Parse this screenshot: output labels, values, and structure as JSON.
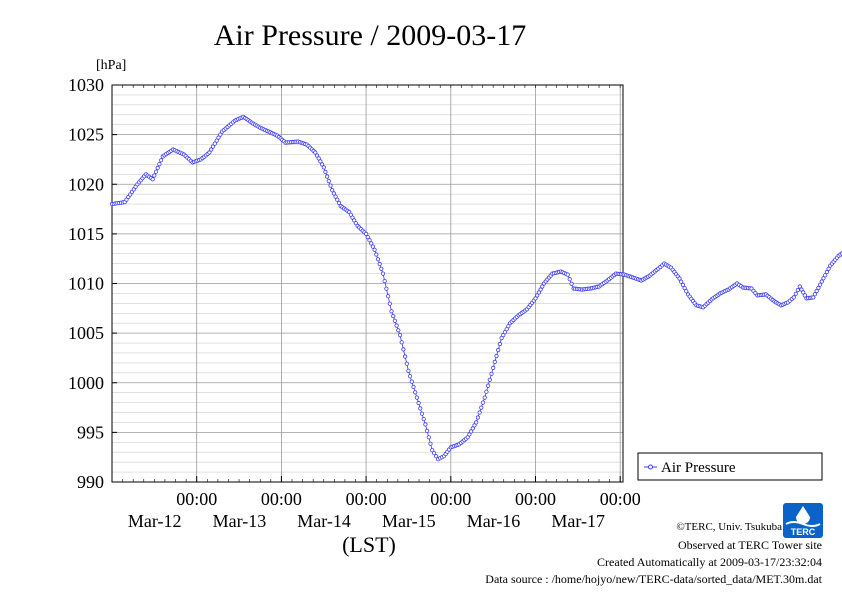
{
  "chart_data": {
    "type": "line",
    "title": "Air Pressure / 2009-03-17",
    "ylabel": "[hPa]",
    "xlabel": "(LST)",
    "ylim": [
      990,
      1030
    ],
    "y_ticks": [
      990,
      995,
      1000,
      1005,
      1010,
      1015,
      1020,
      1025,
      1030
    ],
    "x_ticks": [
      {
        "time": "00:00",
        "date": "Mar-12"
      },
      {
        "time": "00:00",
        "date": "Mar-13"
      },
      {
        "time": "00:00",
        "date": "Mar-14"
      },
      {
        "time": "00:00",
        "date": "Mar-15"
      },
      {
        "time": "00:00",
        "date": "Mar-16"
      },
      {
        "time": "00:00",
        "date": "Mar-17"
      }
    ],
    "grid": true,
    "legend_position": "right",
    "series": [
      {
        "name": "Air Pressure",
        "color": "#3a3aff",
        "marker": "open-circle",
        "x_day_start": "Mar-11",
        "points": [
          [
            0.0,
            1018.0
          ],
          [
            0.15,
            1018.2
          ],
          [
            0.3,
            1020.0
          ],
          [
            0.4,
            1021.0
          ],
          [
            0.48,
            1020.5
          ],
          [
            0.6,
            1022.8
          ],
          [
            0.72,
            1023.5
          ],
          [
            0.85,
            1023.0
          ],
          [
            0.95,
            1022.2
          ],
          [
            1.05,
            1022.5
          ],
          [
            1.15,
            1023.2
          ],
          [
            1.3,
            1025.3
          ],
          [
            1.45,
            1026.4
          ],
          [
            1.55,
            1026.8
          ],
          [
            1.65,
            1026.2
          ],
          [
            1.75,
            1025.7
          ],
          [
            1.85,
            1025.3
          ],
          [
            1.95,
            1024.9
          ],
          [
            2.05,
            1024.2
          ],
          [
            2.2,
            1024.3
          ],
          [
            2.3,
            1024.0
          ],
          [
            2.4,
            1023.2
          ],
          [
            2.5,
            1021.7
          ],
          [
            2.6,
            1019.4
          ],
          [
            2.7,
            1017.8
          ],
          [
            2.8,
            1017.2
          ],
          [
            2.9,
            1015.8
          ],
          [
            3.0,
            1015.0
          ],
          [
            3.1,
            1013.4
          ],
          [
            3.2,
            1011.0
          ],
          [
            3.3,
            1007.2
          ],
          [
            3.4,
            1004.8
          ],
          [
            3.5,
            1001.2
          ],
          [
            3.6,
            998.5
          ],
          [
            3.7,
            995.8
          ],
          [
            3.78,
            993.2
          ],
          [
            3.85,
            992.3
          ],
          [
            3.92,
            992.6
          ],
          [
            4.0,
            993.5
          ],
          [
            4.1,
            993.8
          ],
          [
            4.2,
            994.5
          ],
          [
            4.3,
            996.0
          ],
          [
            4.4,
            998.5
          ],
          [
            4.5,
            1001.5
          ],
          [
            4.6,
            1004.5
          ],
          [
            4.7,
            1006.0
          ],
          [
            4.8,
            1006.8
          ],
          [
            4.9,
            1007.4
          ],
          [
            5.0,
            1008.5
          ],
          [
            5.1,
            1010.0
          ],
          [
            5.2,
            1011.0
          ],
          [
            5.3,
            1011.2
          ],
          [
            5.38,
            1010.9
          ],
          [
            5.45,
            1009.5
          ],
          [
            5.55,
            1009.4
          ],
          [
            5.65,
            1009.5
          ],
          [
            5.75,
            1009.7
          ],
          [
            5.85,
            1010.3
          ],
          [
            5.95,
            1011.0
          ],
          [
            6.05,
            1010.9
          ],
          [
            6.15,
            1010.6
          ],
          [
            6.25,
            1010.3
          ],
          [
            6.35,
            1010.8
          ],
          [
            6.45,
            1011.5
          ],
          [
            6.52,
            1012.0
          ],
          [
            6.6,
            1011.6
          ],
          [
            6.7,
            1010.5
          ],
          [
            6.8,
            1008.9
          ],
          [
            6.9,
            1007.8
          ],
          [
            6.98,
            1007.6
          ],
          [
            7.08,
            1008.4
          ],
          [
            7.18,
            1009.0
          ],
          [
            7.28,
            1009.4
          ],
          [
            7.38,
            1010.0
          ],
          [
            7.45,
            1009.6
          ],
          [
            7.55,
            1009.5
          ],
          [
            7.62,
            1008.8
          ],
          [
            7.72,
            1008.9
          ],
          [
            7.82,
            1008.2
          ],
          [
            7.9,
            1007.8
          ],
          [
            7.98,
            1008.1
          ],
          [
            8.05,
            1008.6
          ],
          [
            8.12,
            1009.7
          ],
          [
            8.2,
            1008.5
          ],
          [
            8.28,
            1008.6
          ],
          [
            8.38,
            1010.2
          ],
          [
            8.48,
            1011.8
          ],
          [
            8.58,
            1012.8
          ],
          [
            8.68,
            1013.4
          ],
          [
            8.76,
            1014.8
          ],
          [
            8.82,
            1015.2
          ]
        ]
      }
    ]
  },
  "legend": {
    "label": "Air Pressure"
  },
  "footer": {
    "copyright": "©TERC, Univ. Tsukuba",
    "observed": "Observed at TERC Tower site",
    "created": "Created Automatically at 2009-03-17/23:32:04",
    "source": "Data source : /home/hojyo/new/TERC-data/sorted_data/MET.30m.dat"
  },
  "logo": {
    "text": "TERC"
  }
}
